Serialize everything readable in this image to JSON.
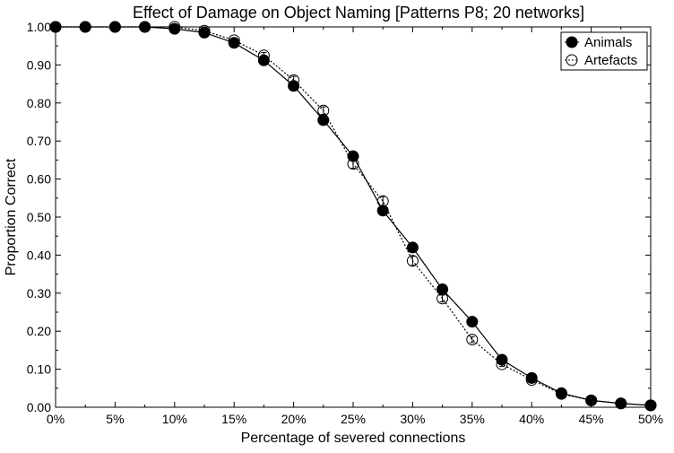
{
  "chart_data": {
    "type": "line",
    "title": "Effect of Damage on Object Naming [Patterns P8; 20 networks]",
    "xlabel": "Percentage of severed connections",
    "ylabel": "Proportion Correct",
    "x": [
      0,
      2.5,
      5,
      7.5,
      10,
      12.5,
      15,
      17.5,
      20,
      22.5,
      25,
      27.5,
      30,
      32.5,
      35,
      37.5,
      40,
      42.5,
      45,
      47.5,
      50
    ],
    "xlim": [
      0,
      50
    ],
    "ylim": [
      0,
      1
    ],
    "x_ticks": [
      0,
      5,
      10,
      15,
      20,
      25,
      30,
      35,
      40,
      45,
      50
    ],
    "x_tick_labels": [
      "0%",
      "5%",
      "10%",
      "15%",
      "20%",
      "25%",
      "30%",
      "35%",
      "40%",
      "45%",
      "50%"
    ],
    "y_ticks": [
      0,
      0.1,
      0.2,
      0.3,
      0.4,
      0.5,
      0.6,
      0.7,
      0.8,
      0.9,
      1.0
    ],
    "y_tick_labels": [
      "0.00",
      "0.10",
      "0.20",
      "0.30",
      "0.40",
      "0.50",
      "0.60",
      "0.70",
      "0.80",
      "0.90",
      "1.00"
    ],
    "grid": false,
    "legend_position": "top-right",
    "series": [
      {
        "name": "Animals",
        "marker": "filled-circle",
        "line_style": "solid",
        "color": "#000000",
        "values": [
          1.0,
          1.0,
          1.0,
          1.0,
          0.995,
          0.985,
          0.958,
          0.912,
          0.845,
          0.755,
          0.66,
          0.517,
          0.42,
          0.31,
          0.225,
          0.125,
          0.077,
          0.037,
          0.018,
          0.01,
          0.005
        ],
        "errors": [
          0,
          0,
          0,
          0,
          0.002,
          0.004,
          0.005,
          0.006,
          0.008,
          0.008,
          0.01,
          0.01,
          0.01,
          0.008,
          0.007,
          0.005,
          0.004,
          0.003,
          0.002,
          0.002,
          0.001
        ]
      },
      {
        "name": "Artefacts",
        "marker": "open-circle",
        "line_style": "dotted",
        "color": "#000000",
        "values": [
          1.0,
          1.0,
          1.0,
          1.0,
          1.0,
          0.99,
          0.965,
          0.925,
          0.86,
          0.78,
          0.64,
          0.542,
          0.385,
          0.286,
          0.178,
          0.113,
          0.072,
          0.035,
          0.018,
          0.01,
          0.005
        ],
        "errors": [
          0,
          0,
          0,
          0,
          0.002,
          0.004,
          0.006,
          0.008,
          0.01,
          0.01,
          0.012,
          0.012,
          0.012,
          0.009,
          0.008,
          0.006,
          0.005,
          0.003,
          0.002,
          0.002,
          0.001
        ]
      }
    ]
  }
}
